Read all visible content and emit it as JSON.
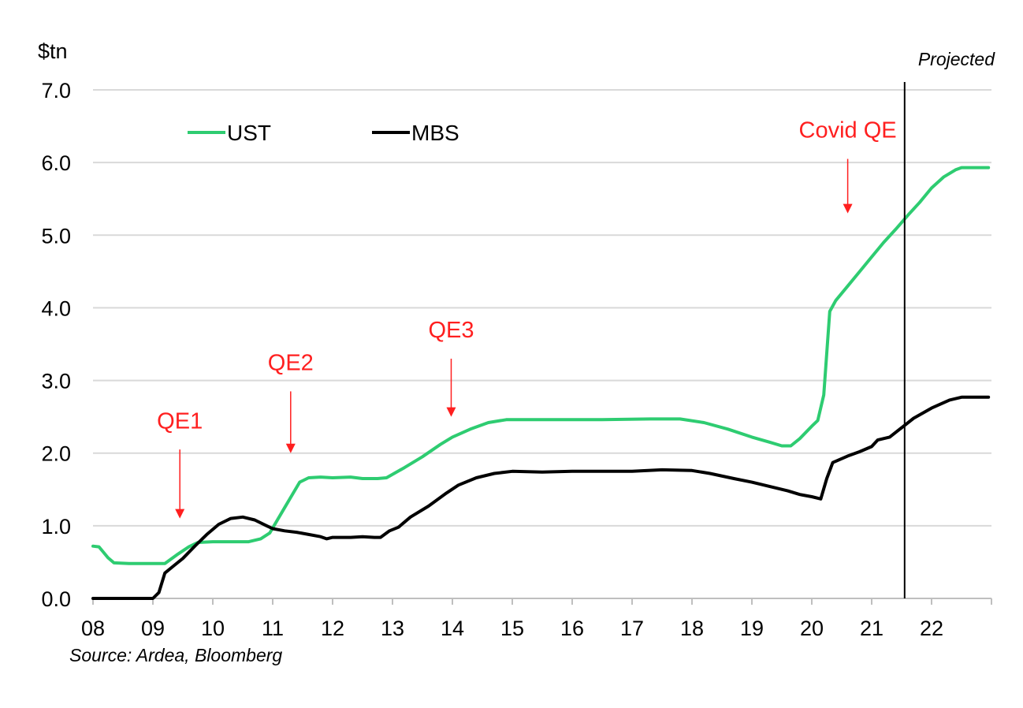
{
  "chart_data": {
    "type": "line",
    "ylabel": "$tn",
    "ylim": [
      0,
      7
    ],
    "yticks": [
      "0.0",
      "1.0",
      "2.0",
      "3.0",
      "4.0",
      "5.0",
      "6.0",
      "7.0"
    ],
    "xlim": [
      8,
      23
    ],
    "xticks": [
      "08",
      "09",
      "10",
      "11",
      "12",
      "13",
      "14",
      "15",
      "16",
      "17",
      "18",
      "19",
      "20",
      "21",
      "22"
    ],
    "grid": true,
    "legend_position": "top-left",
    "series": [
      {
        "name": "UST",
        "color": "#2ecc71",
        "points": [
          [
            8.0,
            0.72
          ],
          [
            8.1,
            0.71
          ],
          [
            8.25,
            0.56
          ],
          [
            8.35,
            0.49
          ],
          [
            8.6,
            0.48
          ],
          [
            9.0,
            0.48
          ],
          [
            9.2,
            0.48
          ],
          [
            9.4,
            0.6
          ],
          [
            9.6,
            0.71
          ],
          [
            9.75,
            0.77
          ],
          [
            10.0,
            0.78
          ],
          [
            10.3,
            0.78
          ],
          [
            10.6,
            0.78
          ],
          [
            10.8,
            0.82
          ],
          [
            10.95,
            0.9
          ],
          [
            11.2,
            1.25
          ],
          [
            11.45,
            1.6
          ],
          [
            11.6,
            1.66
          ],
          [
            11.8,
            1.67
          ],
          [
            12.0,
            1.66
          ],
          [
            12.3,
            1.67
          ],
          [
            12.5,
            1.65
          ],
          [
            12.75,
            1.65
          ],
          [
            12.9,
            1.66
          ],
          [
            13.2,
            1.8
          ],
          [
            13.5,
            1.95
          ],
          [
            13.8,
            2.12
          ],
          [
            14.0,
            2.22
          ],
          [
            14.3,
            2.33
          ],
          [
            14.6,
            2.42
          ],
          [
            14.9,
            2.46
          ],
          [
            15.5,
            2.46
          ],
          [
            16.5,
            2.46
          ],
          [
            17.3,
            2.47
          ],
          [
            17.8,
            2.47
          ],
          [
            18.2,
            2.42
          ],
          [
            18.6,
            2.33
          ],
          [
            19.0,
            2.22
          ],
          [
            19.3,
            2.15
          ],
          [
            19.5,
            2.1
          ],
          [
            19.65,
            2.1
          ],
          [
            19.8,
            2.2
          ],
          [
            20.0,
            2.37
          ],
          [
            20.1,
            2.45
          ],
          [
            20.2,
            2.8
          ],
          [
            20.3,
            3.95
          ],
          [
            20.4,
            4.1
          ],
          [
            20.6,
            4.3
          ],
          [
            20.8,
            4.5
          ],
          [
            21.0,
            4.7
          ],
          [
            21.2,
            4.9
          ],
          [
            21.4,
            5.08
          ],
          [
            21.6,
            5.27
          ],
          [
            21.8,
            5.45
          ],
          [
            22.0,
            5.65
          ],
          [
            22.2,
            5.8
          ],
          [
            22.4,
            5.9
          ],
          [
            22.5,
            5.93
          ],
          [
            22.7,
            5.93
          ],
          [
            22.95,
            5.93
          ]
        ]
      },
      {
        "name": "MBS",
        "color": "#000000",
        "points": [
          [
            8.0,
            0.0
          ],
          [
            8.5,
            0.0
          ],
          [
            9.0,
            0.0
          ],
          [
            9.1,
            0.08
          ],
          [
            9.2,
            0.35
          ],
          [
            9.35,
            0.45
          ],
          [
            9.5,
            0.55
          ],
          [
            9.7,
            0.72
          ],
          [
            9.9,
            0.88
          ],
          [
            10.1,
            1.02
          ],
          [
            10.3,
            1.1
          ],
          [
            10.5,
            1.12
          ],
          [
            10.7,
            1.08
          ],
          [
            10.9,
            1.0
          ],
          [
            11.0,
            0.96
          ],
          [
            11.2,
            0.93
          ],
          [
            11.4,
            0.91
          ],
          [
            11.6,
            0.88
          ],
          [
            11.8,
            0.85
          ],
          [
            11.9,
            0.82
          ],
          [
            12.0,
            0.84
          ],
          [
            12.3,
            0.84
          ],
          [
            12.5,
            0.85
          ],
          [
            12.7,
            0.84
          ],
          [
            12.8,
            0.84
          ],
          [
            12.95,
            0.93
          ],
          [
            13.1,
            0.98
          ],
          [
            13.3,
            1.12
          ],
          [
            13.6,
            1.27
          ],
          [
            13.9,
            1.45
          ],
          [
            14.1,
            1.56
          ],
          [
            14.4,
            1.66
          ],
          [
            14.7,
            1.72
          ],
          [
            15.0,
            1.75
          ],
          [
            15.5,
            1.74
          ],
          [
            16.0,
            1.75
          ],
          [
            16.5,
            1.75
          ],
          [
            17.0,
            1.75
          ],
          [
            17.5,
            1.77
          ],
          [
            18.0,
            1.76
          ],
          [
            18.3,
            1.72
          ],
          [
            18.7,
            1.65
          ],
          [
            19.0,
            1.6
          ],
          [
            19.3,
            1.54
          ],
          [
            19.6,
            1.48
          ],
          [
            19.8,
            1.43
          ],
          [
            20.0,
            1.4
          ],
          [
            20.15,
            1.37
          ],
          [
            20.25,
            1.65
          ],
          [
            20.35,
            1.87
          ],
          [
            20.6,
            1.96
          ],
          [
            20.8,
            2.02
          ],
          [
            21.0,
            2.09
          ],
          [
            21.1,
            2.18
          ],
          [
            21.3,
            2.22
          ],
          [
            21.5,
            2.35
          ],
          [
            21.7,
            2.48
          ],
          [
            22.0,
            2.62
          ],
          [
            22.3,
            2.73
          ],
          [
            22.5,
            2.77
          ],
          [
            22.95,
            2.77
          ]
        ]
      }
    ],
    "projection_x": 21.55,
    "projection_label": "Projected",
    "annotations": [
      {
        "text": "QE1",
        "x": 9.45,
        "label_y": 2.45,
        "arrow_from": 2.05,
        "arrow_to": 1.1
      },
      {
        "text": "QE2",
        "x": 11.3,
        "label_y": 3.25,
        "arrow_from": 2.85,
        "arrow_to": 2.0
      },
      {
        "text": "QE3",
        "x": 13.98,
        "label_y": 3.7,
        "arrow_from": 3.3,
        "arrow_to": 2.5
      },
      {
        "text": "Covid QE",
        "x": 20.6,
        "label_y": 6.45,
        "arrow_from": 6.05,
        "arrow_to": 5.3
      }
    ],
    "source": "Source: Ardea, Bloomberg"
  }
}
